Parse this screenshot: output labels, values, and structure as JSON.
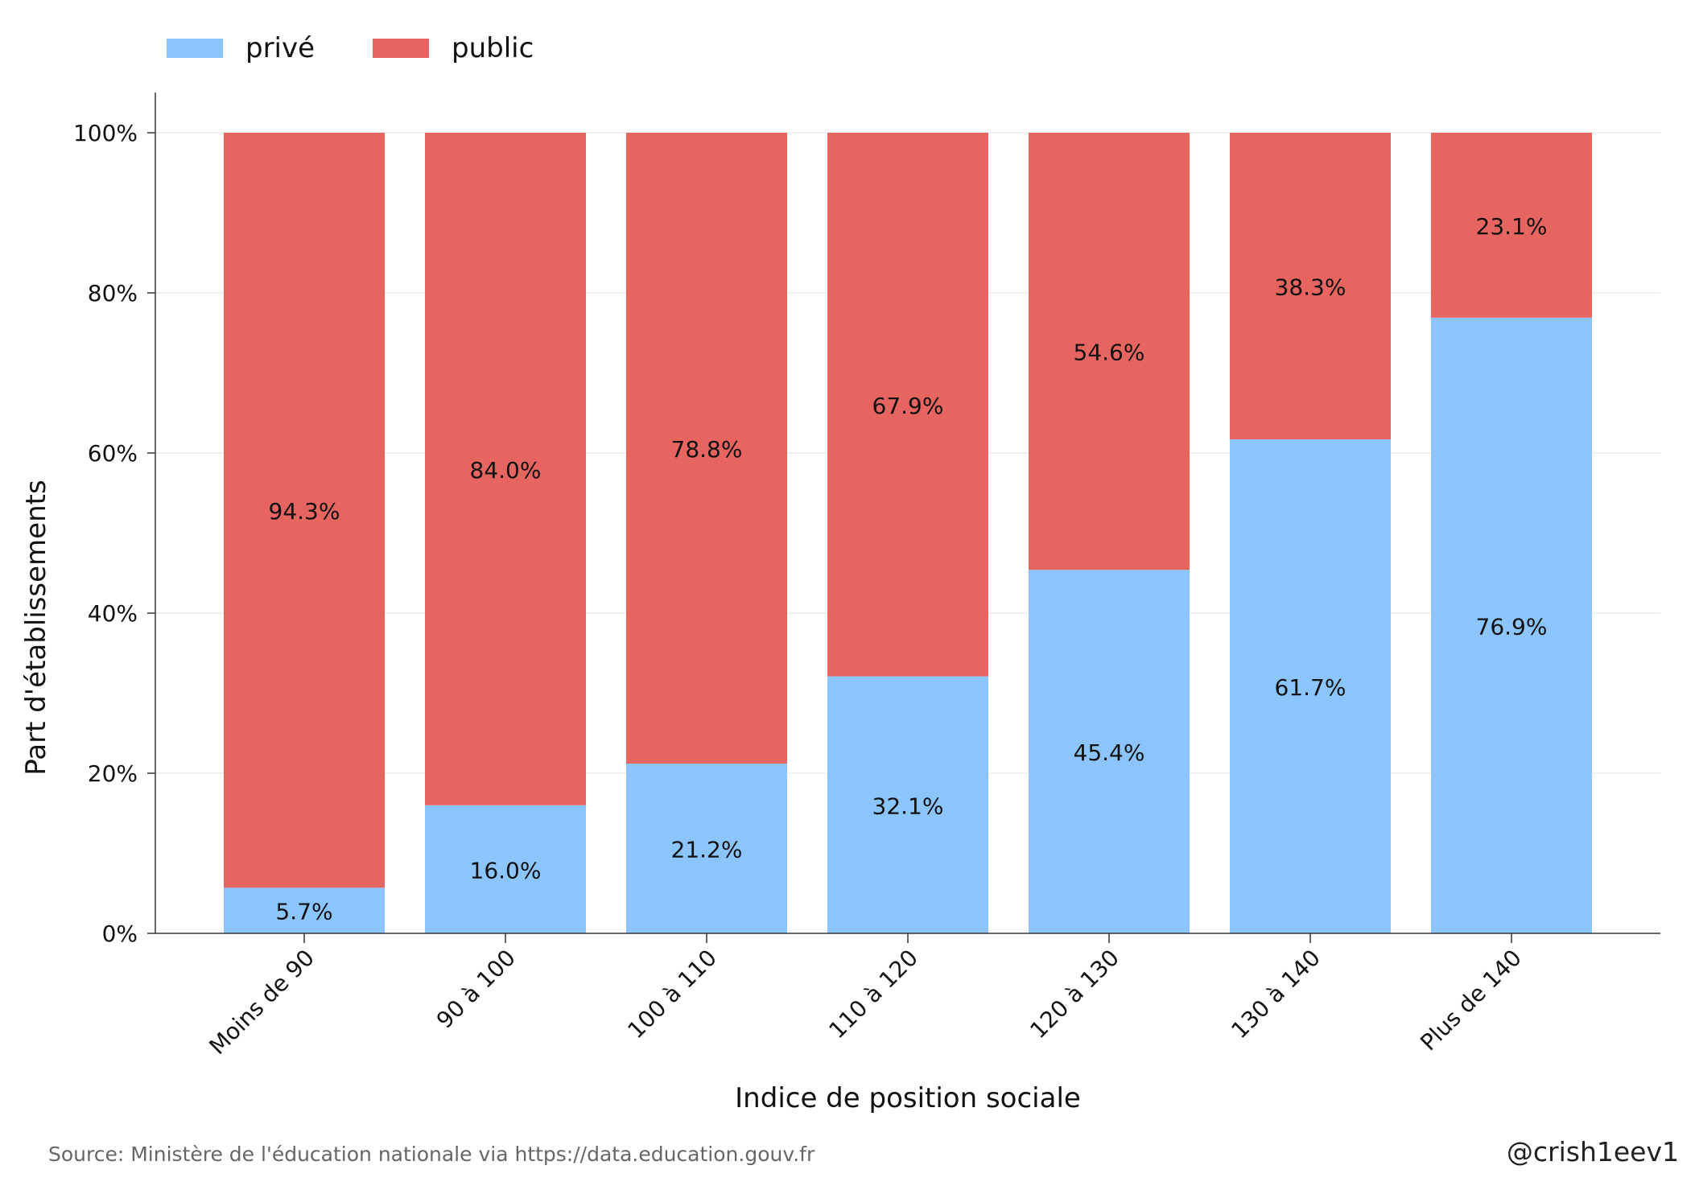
{
  "chart_data": {
    "type": "bar",
    "stacked": true,
    "categories": [
      "Moins de 90",
      "90 à 100",
      "100 à 110",
      "110 à 120",
      "120 à 130",
      "130 à 140",
      "Plus de 140"
    ],
    "series": [
      {
        "name": "privé",
        "color": "#8bc5fb",
        "values": [
          5.7,
          16.0,
          21.2,
          32.1,
          45.4,
          61.7,
          76.9
        ],
        "labels": [
          "5.7%",
          "16.0%",
          "21.2%",
          "32.1%",
          "45.4%",
          "61.7%",
          "76.9%"
        ]
      },
      {
        "name": "public",
        "color": "#e76560",
        "values": [
          94.3,
          84.0,
          78.8,
          67.9,
          54.6,
          38.3,
          23.1
        ],
        "labels": [
          "94.3%",
          "84.0%",
          "78.8%",
          "67.9%",
          "54.6%",
          "38.3%",
          "23.1%"
        ]
      }
    ],
    "ylim": [
      0,
      105
    ],
    "yticks": [
      0,
      20,
      40,
      60,
      80,
      100
    ],
    "ytick_labels": [
      "0%",
      "20%",
      "40%",
      "60%",
      "80%",
      "100%"
    ],
    "xlabel": "Indice de position sociale",
    "ylabel": "Part d'établissements",
    "legend_position": "top-left",
    "grid": true
  },
  "source_text": "Source: Ministère de l'éducation nationale via https://data.education.gouv.fr",
  "credit_text": "@crish1eev1"
}
